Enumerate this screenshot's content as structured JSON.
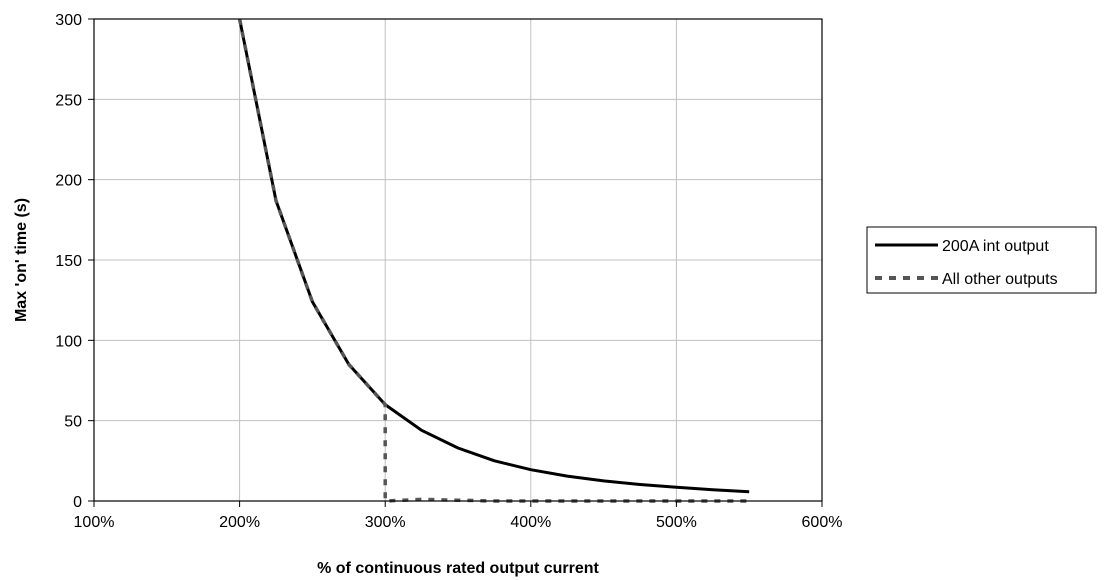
{
  "chart_data": {
    "type": "line",
    "title": "",
    "xlabel": "% of continuous rated output current",
    "ylabel": "Max 'on' time (s)",
    "xlim": [
      100,
      600
    ],
    "ylim": [
      0,
      300
    ],
    "x_ticks": [
      100,
      200,
      300,
      400,
      500,
      600
    ],
    "x_tick_labels": [
      "100%",
      "200%",
      "300%",
      "400%",
      "500%",
      "600%"
    ],
    "y_ticks": [
      0,
      50,
      100,
      150,
      200,
      250,
      300
    ],
    "y_tick_labels": [
      "0",
      "50",
      "100",
      "150",
      "200",
      "250",
      "300"
    ],
    "grid": true,
    "legend_position": "right",
    "series": [
      {
        "name": "200A int output",
        "color": "#000000",
        "style": "solid",
        "x": [
          200,
          225,
          250,
          275,
          300,
          325,
          350,
          375,
          400,
          425,
          450,
          475,
          500,
          525,
          550
        ],
        "y": [
          300,
          187,
          124,
          85,
          60,
          44,
          33,
          25,
          19.5,
          15.5,
          12.5,
          10.3,
          8.5,
          7,
          5.8
        ]
      },
      {
        "name": "All other outputs",
        "color": "#555555",
        "style": "dashed",
        "x": [
          200,
          225,
          250,
          275,
          300,
          300,
          325,
          350,
          375,
          400,
          425,
          450,
          475,
          500,
          525,
          550
        ],
        "y": [
          300,
          187,
          124,
          85,
          60,
          0,
          1,
          0.5,
          0,
          0,
          0,
          0,
          0,
          0,
          0,
          0
        ]
      }
    ]
  }
}
